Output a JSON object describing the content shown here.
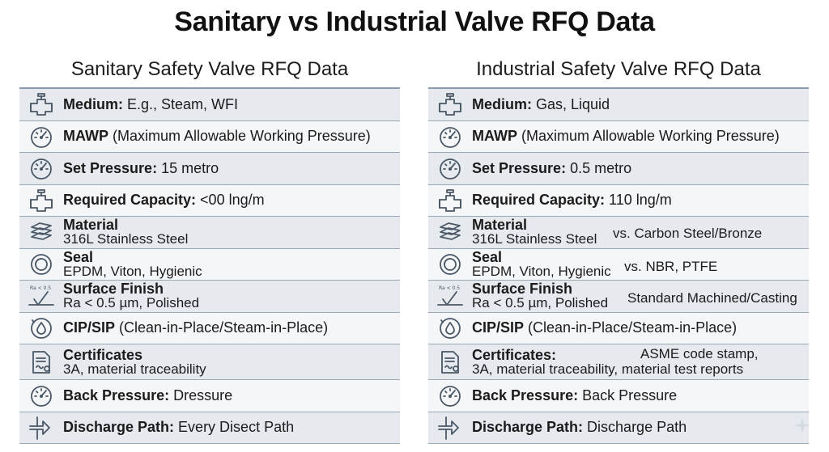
{
  "title": "Sanitary vs Industrial Valve RFQ Data",
  "left": {
    "title": "Sanitary Safety Valve RFQ Data",
    "rows": [
      {
        "icon": "valve-icon",
        "label": "Medium:",
        "value": " E.g., Steam, WFI"
      },
      {
        "icon": "gauge-icon",
        "label": "MAWP",
        "value": " (Maximum Allowable Working Pressure)"
      },
      {
        "icon": "gauge-icon",
        "label": "Set Pressure:",
        "value": " 15 metro"
      },
      {
        "icon": "valve-icon",
        "label": "Required Capacity:",
        "value": " <00 lng/m"
      },
      {
        "icon": "material-layers-icon",
        "label": "Material",
        "value": "316L Stainless Steel"
      },
      {
        "icon": "seal-ring-icon",
        "label": "Seal",
        "value": "EPDM, Viton, Hygienic"
      },
      {
        "icon": "surface-finish-icon",
        "label": "Surface Finish",
        "value": "Ra < 0.5 µm, Polished",
        "icon_text": "Ra < 0.5"
      },
      {
        "icon": "cip-drop-icon",
        "label": "CIP/SIP",
        "value": " (Clean-in-Place/Steam-in-Place)"
      },
      {
        "icon": "certificate-icon",
        "label": "Certificates",
        "value": "3A, material traceability"
      },
      {
        "icon": "gauge-icon",
        "label": "Back Pressure:",
        "value": " Dressure"
      },
      {
        "icon": "discharge-pipe-icon",
        "label": "Discharge Path:",
        "value": " Every Disect Path"
      }
    ]
  },
  "right": {
    "title": "Industrial Safety Valve RFQ Data",
    "rows": [
      {
        "icon": "valve-icon",
        "label": "Medium:",
        "value": " Gas, Liquid"
      },
      {
        "icon": "gauge-icon",
        "label": "MAWP",
        "value": " (Maximum Allowable Working Pressure)"
      },
      {
        "icon": "gauge-icon",
        "label": "Set Pressure:",
        "value": " 0.5 metro"
      },
      {
        "icon": "valve-icon",
        "label": "Required Capacity:",
        "value": " 110 lng/m"
      },
      {
        "icon": "material-layers-icon",
        "label": "Material",
        "value": "316L Stainless Steel",
        "extra": "vs. Carbon Steel/Bronze"
      },
      {
        "icon": "seal-ring-icon",
        "label": "Seal",
        "value": "EPDM, Viton, Hygienic",
        "extra": "vs. NBR, PTFE"
      },
      {
        "icon": "surface-finish-icon",
        "label": "Surface Finish",
        "value": "Ra < 0.5 µm, Polished",
        "extra": "Standard Machined/Casting",
        "icon_text": "Ra < 0.5"
      },
      {
        "icon": "cip-drop-icon",
        "label": "CIP/SIP",
        "value": " (Clean-in-Place/Steam-in-Place)"
      },
      {
        "icon": "certificate-icon",
        "label": "Certificates:",
        "value": "3A, material traceability, material test reports",
        "extra": "ASME code stamp,"
      },
      {
        "icon": "gauge-icon",
        "label": "Back Pressure:",
        "value": " Back Pressure"
      },
      {
        "icon": "discharge-pipe-icon",
        "label": "Discharge Path:",
        "value": " Discharge Path"
      }
    ]
  }
}
